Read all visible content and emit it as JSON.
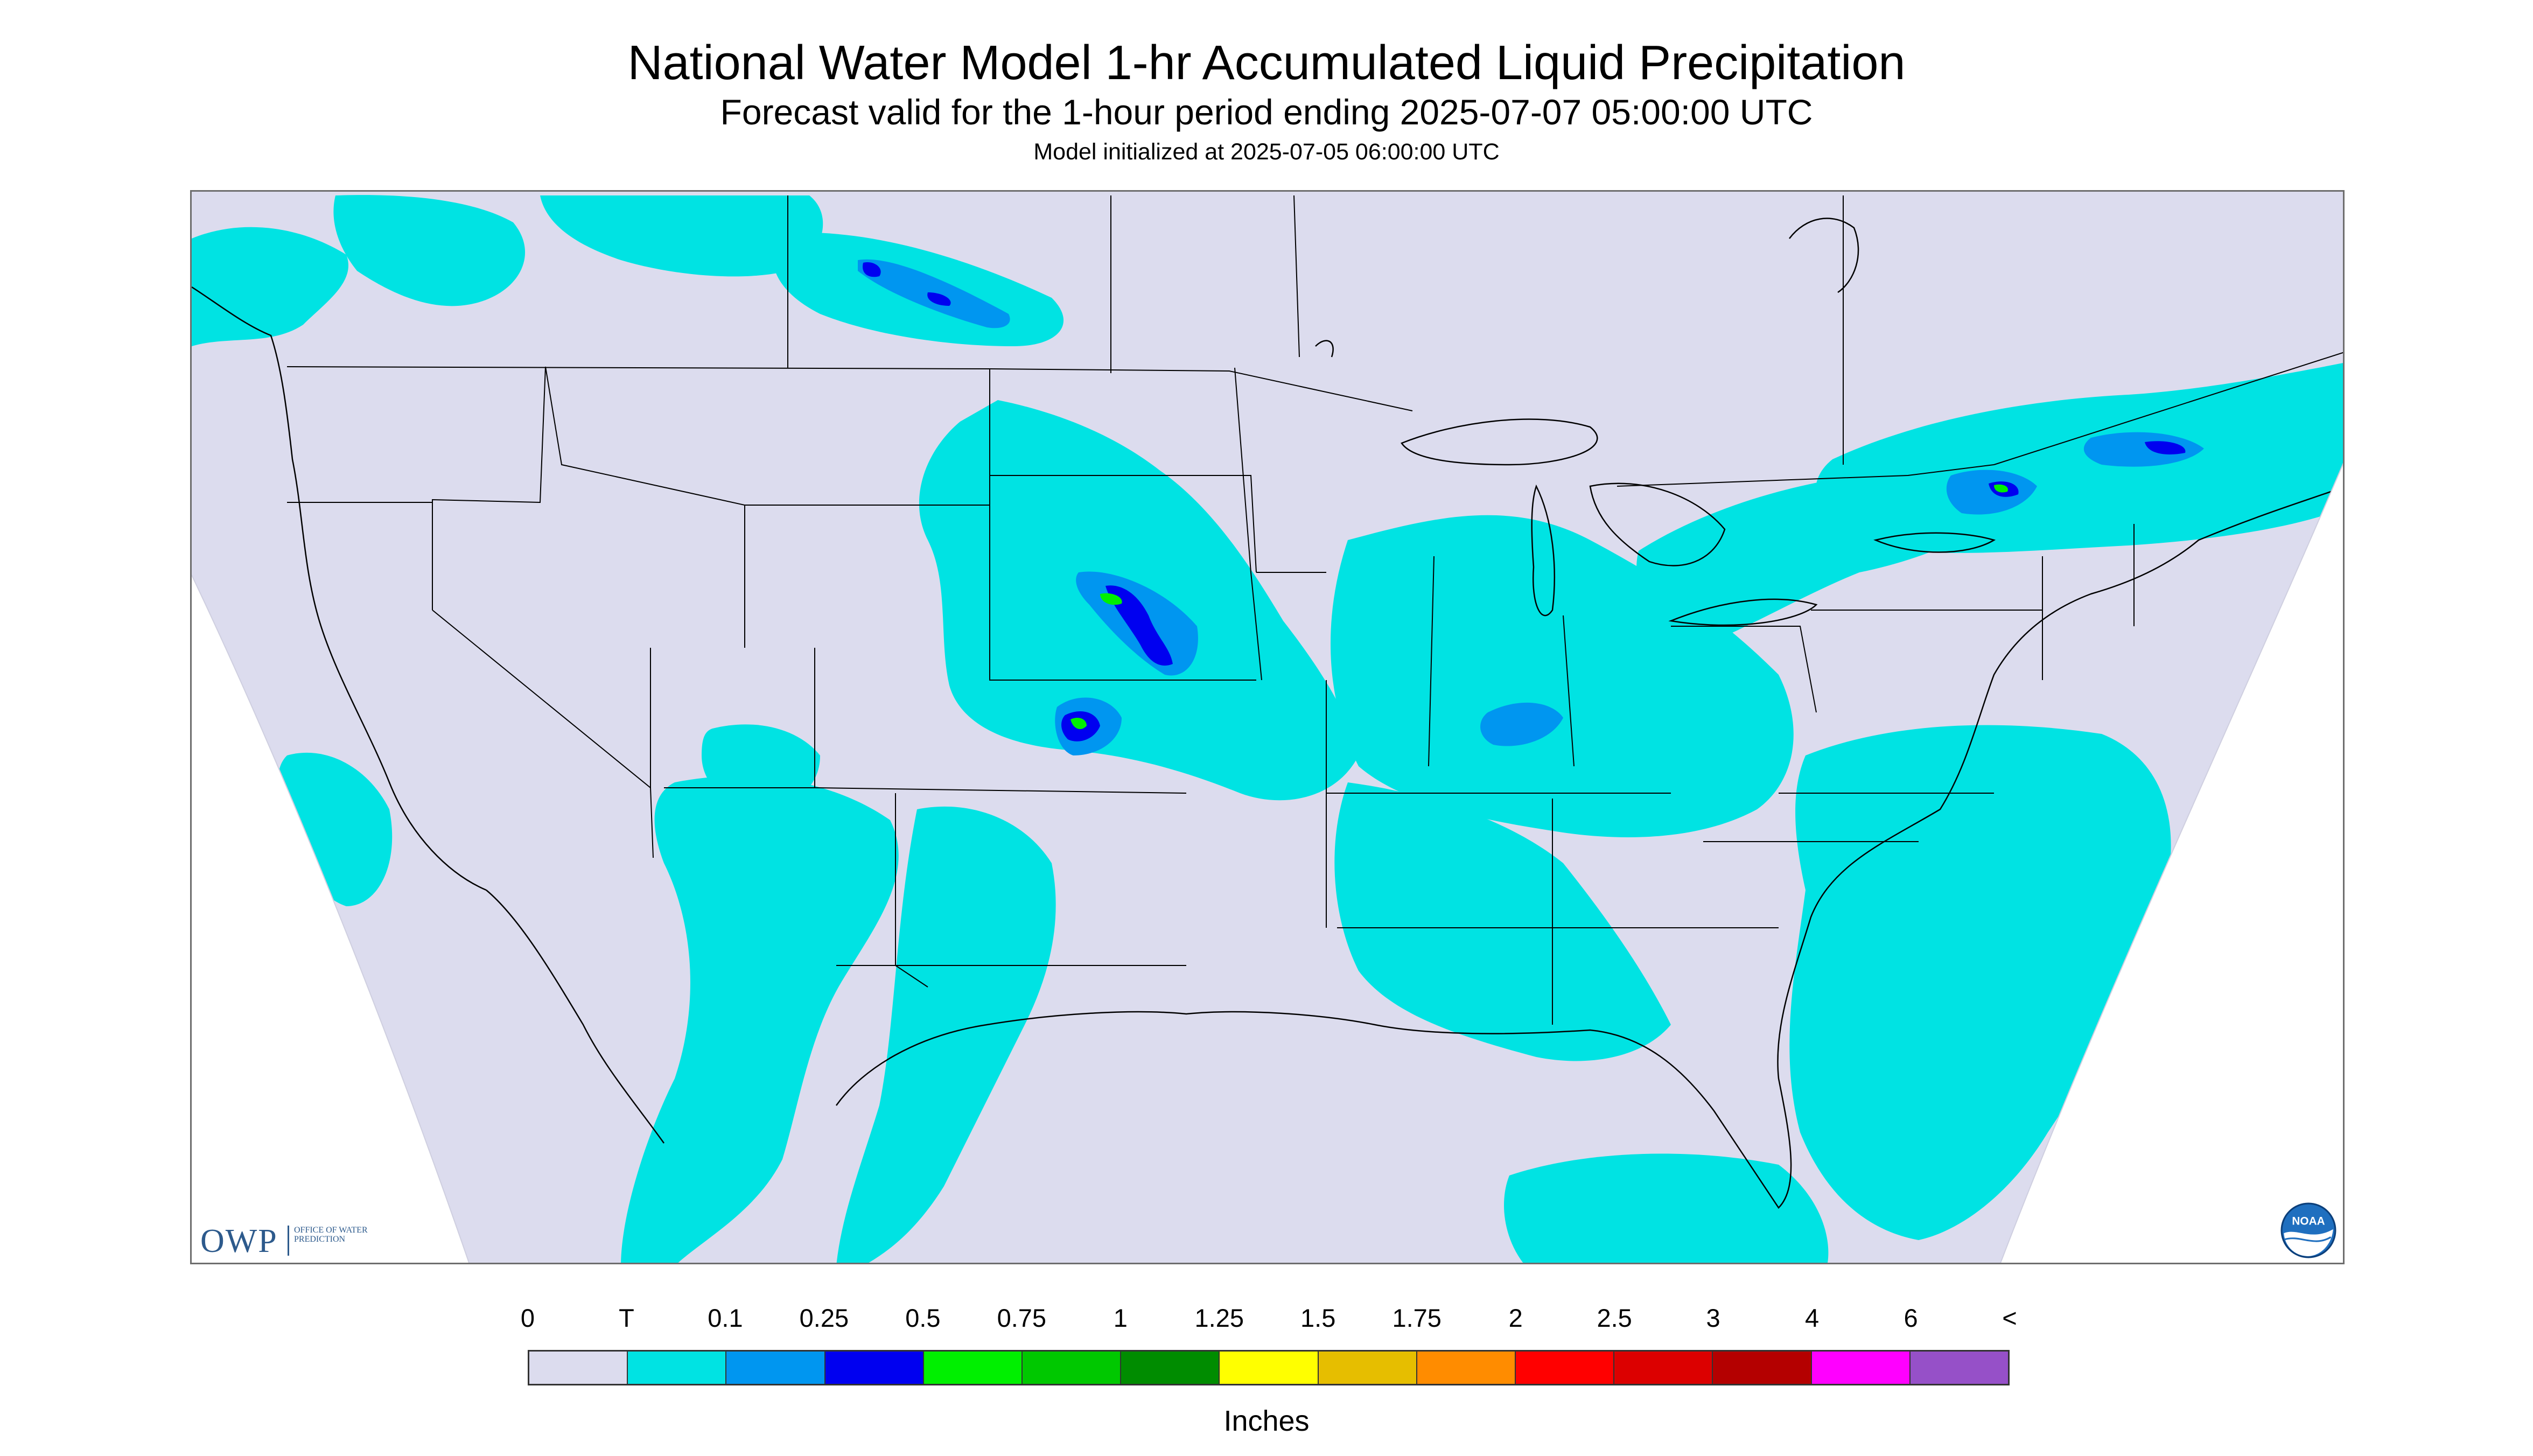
{
  "header": {
    "title": "National Water Model 1-hr Accumulated Liquid Precipitation",
    "subtitle": "Forecast valid for the 1-hour period ending 2025-07-07 05:00:00 UTC",
    "init_line": "Model initialized at 2025-07-05 06:00:00 UTC"
  },
  "logos": {
    "owp_letters": "OWP",
    "owp_subtext": "OFFICE OF WATER PREDICTION",
    "noaa_text": "NOAA"
  },
  "legend": {
    "tick_labels": [
      "0",
      "T",
      "0.1",
      "0.25",
      "0.5",
      "0.75",
      "1",
      "1.25",
      "1.5",
      "1.75",
      "2",
      "2.5",
      "3",
      "4",
      "6",
      "<"
    ],
    "colors": [
      "#dcdcee",
      "#00e3e3",
      "#0096f0",
      "#0000f0",
      "#00f000",
      "#00c800",
      "#008c00",
      "#ffff00",
      "#e6be00",
      "#ff8c00",
      "#ff0000",
      "#dc0000",
      "#b40000",
      "#ff00ff",
      "#9650c8"
    ],
    "units": "Inches"
  },
  "colors": {
    "no_precip": "#dcdcee",
    "trace": "#00e3e3",
    "light": "#0096f0",
    "moderate": "#0000f0",
    "heavy": "#00f000",
    "boundary_lines": "#000000",
    "frame_border": "#6e6e6e"
  }
}
